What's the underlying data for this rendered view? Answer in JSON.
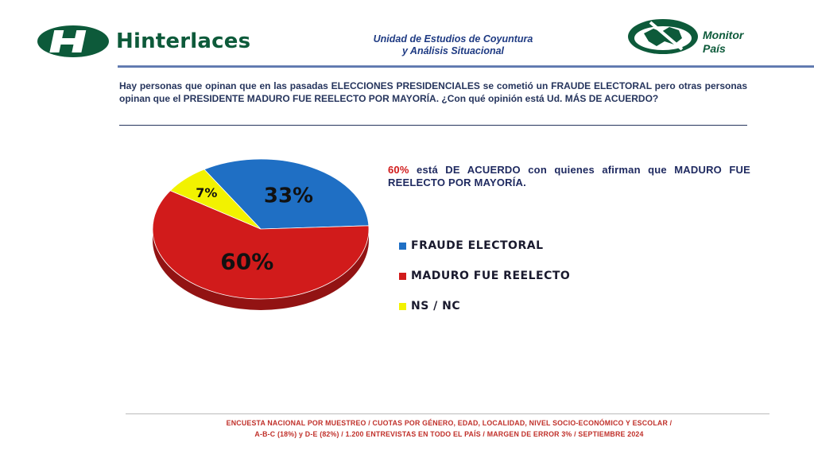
{
  "header": {
    "brand": "Hinterlaces",
    "unit_line1": "Unidad de Estudios de Coyuntura",
    "unit_line2": "y Análisis Situacional",
    "partner_line1": "Monitor",
    "partner_line2": "País",
    "colors": {
      "brand_green": "#0d5a3a",
      "unit_blue": "#1f3b83"
    }
  },
  "question": "Hay personas que opinan que en las pasadas ELECCIONES PRESIDENCIALES se cometió un FRAUDE ELECTORAL pero otras personas opinan que el PRESIDENTE MADURO FUE REELECTO POR MAYORÍA. ¿Con qué opinión está Ud. MÁS DE ACUERDO?",
  "summary": {
    "highlight": "60%",
    "text": " está DE ACUERDO con quienes afirman que MADURO FUE REELECTO POR MAYORÍA."
  },
  "chart_data": {
    "type": "pie",
    "categories": [
      "FRAUDE ELECTORAL",
      "MADURO FUE REELECTO",
      "NS / NC"
    ],
    "values": [
      33,
      60,
      7
    ],
    "labels": [
      "33%",
      "60%",
      "7%"
    ],
    "colors": [
      "#1f6fc4",
      "#d11b1b",
      "#f2f200"
    ],
    "legend_position": "right"
  },
  "footer": {
    "line1": "ENCUESTA NACIONAL POR MUESTREO / CUOTAS POR GÉNERO, EDAD, LOCALIDAD, NIVEL SOCIO-ECONÓMICO Y ESCOLAR /",
    "line2": "A-B-C (18%) y D-E (82%) / 1.200 ENTREVISTAS EN TODO EL PAÍS / MARGEN DE ERROR 3% / ",
    "date": "SEPTIEMBRE 2024"
  }
}
